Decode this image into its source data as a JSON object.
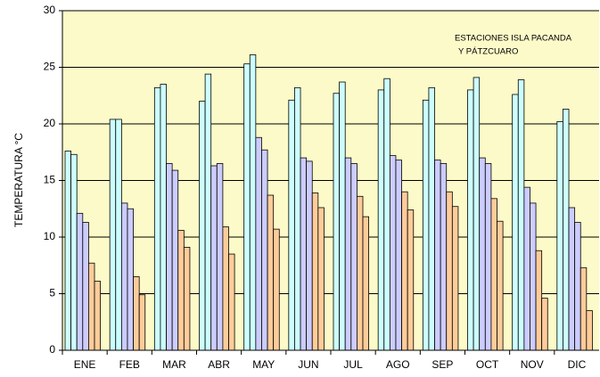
{
  "chart_data": {
    "type": "bar",
    "ylabel": "TEMPERATURA °C",
    "annotation": [
      "ESTACIONES ISLA PACANDA",
      "Y PÁTZCUARO"
    ],
    "categories": [
      "ENE",
      "FEB",
      "MAR",
      "ABR",
      "MAY",
      "JUN",
      "JUL",
      "AGO",
      "SEP",
      "OCT",
      "NOV",
      "DIC"
    ],
    "series": [
      {
        "color": "#ccffff",
        "values": [
          17.6,
          20.4,
          23.2,
          22.0,
          25.3,
          22.1,
          22.7,
          23.0,
          22.1,
          23.0,
          22.6,
          20.2
        ]
      },
      {
        "color": "#ccffff",
        "values": [
          17.3,
          20.4,
          23.5,
          24.4,
          26.1,
          23.2,
          23.7,
          24.0,
          23.2,
          24.1,
          23.9,
          21.3
        ]
      },
      {
        "color": "#ccccff",
        "values": [
          12.1,
          13.0,
          16.5,
          16.3,
          18.8,
          17.0,
          17.0,
          17.2,
          16.8,
          17.0,
          14.4,
          12.6
        ]
      },
      {
        "color": "#ccccff",
        "values": [
          11.3,
          12.5,
          15.9,
          16.5,
          17.7,
          16.7,
          16.5,
          16.8,
          16.5,
          16.5,
          13.0,
          11.3
        ]
      },
      {
        "color": "#ffcc99",
        "values": [
          7.7,
          6.5,
          10.6,
          10.9,
          13.7,
          13.9,
          13.6,
          14.0,
          14.0,
          13.4,
          8.8,
          7.3
        ]
      },
      {
        "color": "#ffcc99",
        "values": [
          6.1,
          4.9,
          9.1,
          8.5,
          10.7,
          12.6,
          11.8,
          12.4,
          12.7,
          11.4,
          4.6,
          3.5
        ]
      }
    ],
    "ylim": [
      0,
      30
    ],
    "yticks": [
      0,
      5,
      10,
      15,
      20,
      25,
      30
    ],
    "grid": true,
    "plot_background": "#fcfac8"
  }
}
